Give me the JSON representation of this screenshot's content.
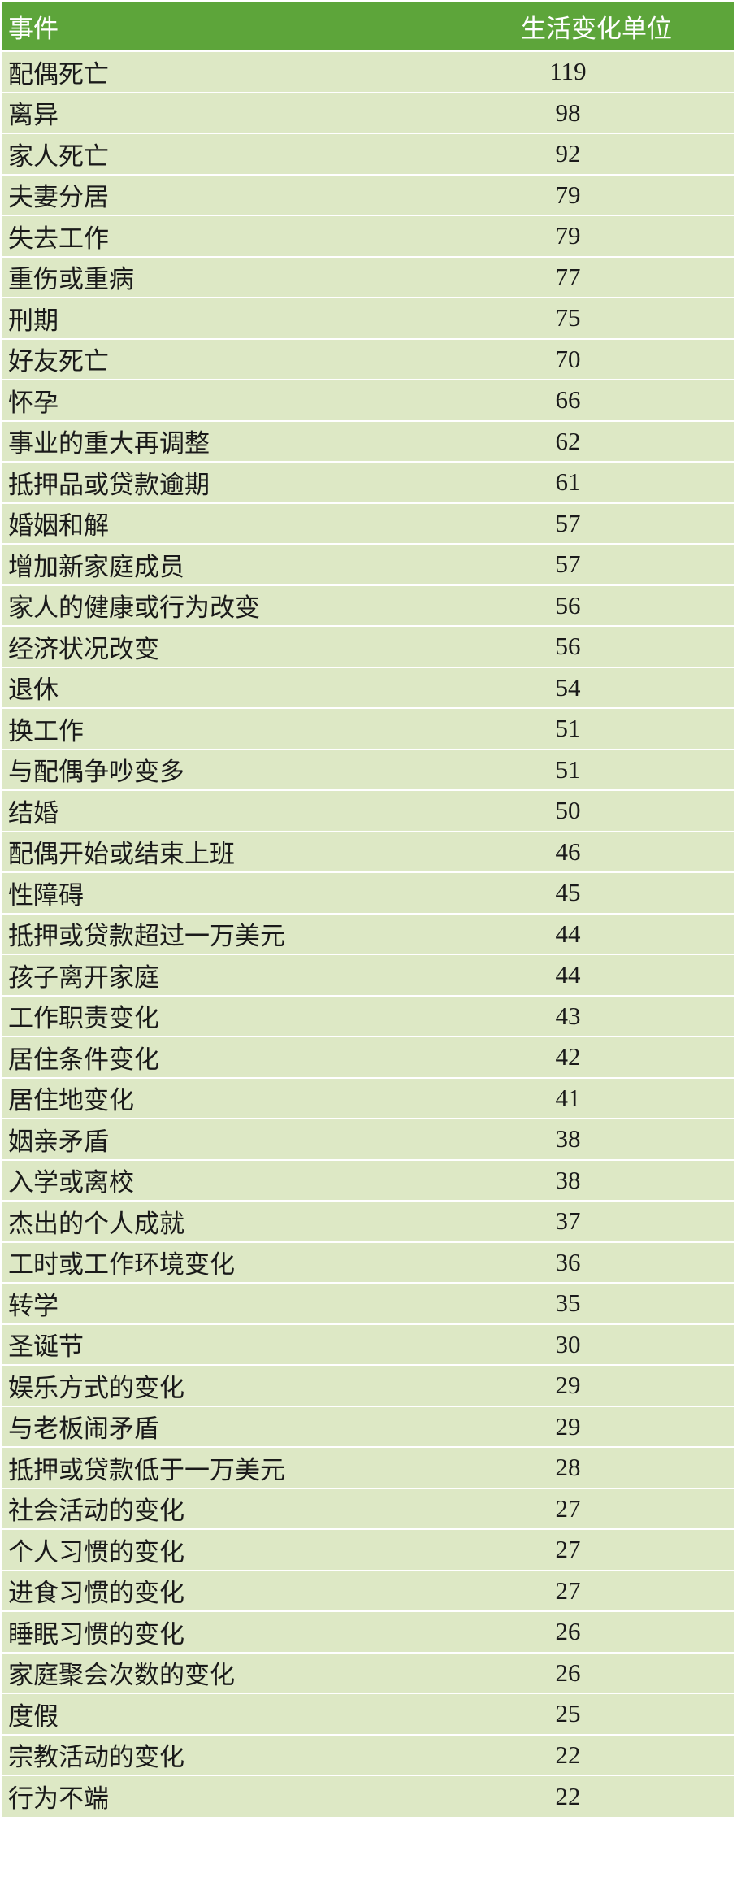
{
  "table": {
    "headers": {
      "event": "事件",
      "value": "生活变化单位"
    },
    "colors": {
      "header_bg": "#5da53a",
      "header_text": "#ffffff",
      "row_bg": "#dde8c5",
      "row_separator": "#ffffff"
    },
    "rows": [
      {
        "event": "配偶死亡",
        "value": "119"
      },
      {
        "event": "离异",
        "value": "98"
      },
      {
        "event": "家人死亡",
        "value": "92"
      },
      {
        "event": "夫妻分居",
        "value": "79"
      },
      {
        "event": "失去工作",
        "value": "79"
      },
      {
        "event": "重伤或重病",
        "value": "77"
      },
      {
        "event": "刑期",
        "value": "75"
      },
      {
        "event": "好友死亡",
        "value": "70"
      },
      {
        "event": "怀孕",
        "value": "66"
      },
      {
        "event": "事业的重大再调整",
        "value": "62"
      },
      {
        "event": "抵押品或贷款逾期",
        "value": "61"
      },
      {
        "event": "婚姻和解",
        "value": "57"
      },
      {
        "event": "增加新家庭成员",
        "value": "57"
      },
      {
        "event": "家人的健康或行为改变",
        "value": "56"
      },
      {
        "event": "经济状况改变",
        "value": "56"
      },
      {
        "event": "退休",
        "value": "54"
      },
      {
        "event": "换工作",
        "value": "51"
      },
      {
        "event": "与配偶争吵变多",
        "value": "51"
      },
      {
        "event": "结婚",
        "value": "50"
      },
      {
        "event": "配偶开始或结束上班",
        "value": "46"
      },
      {
        "event": "性障碍",
        "value": "45"
      },
      {
        "event": "抵押或贷款超过一万美元",
        "value": "44"
      },
      {
        "event": "孩子离开家庭",
        "value": "44"
      },
      {
        "event": "工作职责变化",
        "value": "43"
      },
      {
        "event": "居住条件变化",
        "value": "42"
      },
      {
        "event": "居住地变化",
        "value": "41"
      },
      {
        "event": "姻亲矛盾",
        "value": "38"
      },
      {
        "event": "入学或离校",
        "value": "38"
      },
      {
        "event": "杰出的个人成就",
        "value": "37"
      },
      {
        "event": "工时或工作环境变化",
        "value": "36"
      },
      {
        "event": "转学",
        "value": "35"
      },
      {
        "event": "圣诞节",
        "value": "30"
      },
      {
        "event": "娱乐方式的变化",
        "value": "29"
      },
      {
        "event": "与老板闹矛盾",
        "value": "29"
      },
      {
        "event": "抵押或贷款低于一万美元",
        "value": "28"
      },
      {
        "event": "社会活动的变化",
        "value": "27"
      },
      {
        "event": "个人习惯的变化",
        "value": "27"
      },
      {
        "event": "进食习惯的变化",
        "value": "27"
      },
      {
        "event": "睡眠习惯的变化",
        "value": "26"
      },
      {
        "event": "家庭聚会次数的变化",
        "value": "26"
      },
      {
        "event": "度假",
        "value": "25"
      },
      {
        "event": "宗教活动的变化",
        "value": "22"
      },
      {
        "event": "行为不端",
        "value": "22"
      }
    ]
  }
}
